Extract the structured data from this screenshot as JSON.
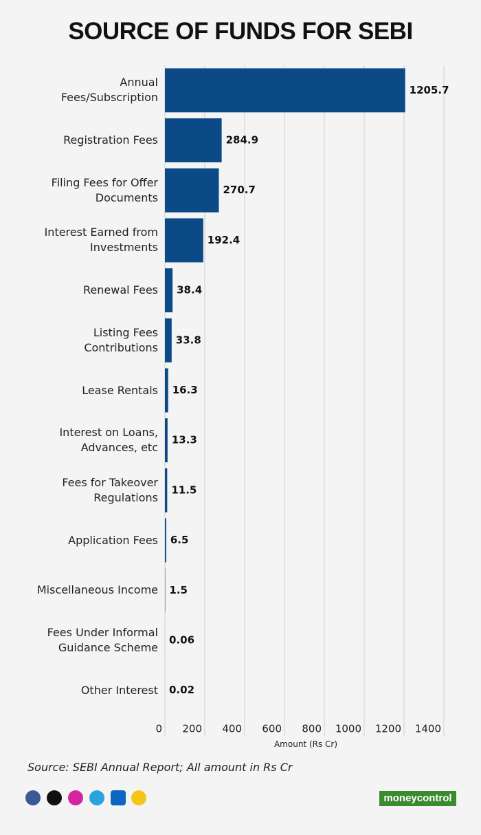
{
  "chart_data": {
    "type": "bar",
    "orientation": "horizontal",
    "title": "SOURCE OF FUNDS FOR SEBI",
    "categories": [
      "Annual\nFees/Subscription",
      "Registration Fees",
      "Filing Fees for Offer\nDocuments",
      "Interest Earned from\nInvestments",
      "Renewal Fees",
      "Listing Fees\nContributions",
      "Lease Rentals",
      "Interest on Loans,\nAdvances, etc",
      "Fees for Takeover\nRegulations",
      "Application Fees",
      "Miscellaneous Income",
      "Fees Under Informal\nGuidance Scheme",
      "Other Interest"
    ],
    "values": [
      1205.7,
      284.9,
      270.7,
      192.4,
      38.4,
      33.8,
      16.3,
      13.3,
      11.5,
      6.5,
      1.5,
      0.06,
      0.02
    ],
    "color": "#0b4a86",
    "xlim": [
      0,
      1400
    ],
    "xticks": [
      0,
      200,
      400,
      600,
      800,
      1000,
      1200,
      1400
    ],
    "xlabel": "Amount (Rs Cr)",
    "grid": true,
    "source": "Source: SEBI Annual Report; All amount in Rs Cr",
    "brand": "moneycontrol"
  }
}
